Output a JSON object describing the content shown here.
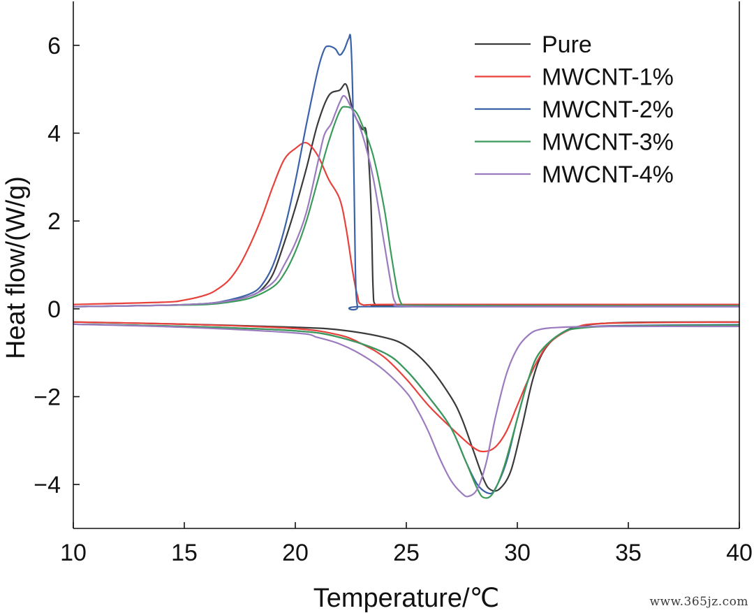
{
  "chart_data": {
    "type": "line",
    "xlabel": "Temperature/℃",
    "ylabel": "Heat flow/(W/g)",
    "xlim": [
      10,
      40
    ],
    "ylim": [
      -5,
      7
    ],
    "xticks": [
      10,
      15,
      20,
      25,
      30,
      35,
      40
    ],
    "yticks": [
      -4,
      -2,
      0,
      2,
      4,
      6
    ],
    "ytick_labels": [
      "−4",
      "−2",
      "0",
      "2",
      "4",
      "6"
    ],
    "grid": false,
    "legend_position": "top-right",
    "series": [
      {
        "name": "Pure",
        "color": "#3a3a3a",
        "curves": [
          [
            [
              10,
              0.05
            ],
            [
              14,
              0.08
            ],
            [
              16,
              0.12
            ],
            [
              17,
              0.18
            ],
            [
              18,
              0.3
            ],
            [
              18.5,
              0.45
            ],
            [
              19,
              0.8
            ],
            [
              19.5,
              1.5
            ],
            [
              20,
              2.3
            ],
            [
              20.5,
              3.2
            ],
            [
              21,
              4.2
            ],
            [
              21.5,
              4.85
            ],
            [
              22,
              4.98
            ],
            [
              22.3,
              5.1
            ],
            [
              22.6,
              4.5
            ],
            [
              23,
              4.1
            ],
            [
              23.2,
              4.0
            ],
            [
              23.4,
              2.5
            ],
            [
              23.5,
              0.5
            ],
            [
              23.6,
              0.1
            ],
            [
              24,
              0.08
            ],
            [
              30,
              0.07
            ],
            [
              40,
              0.07
            ]
          ],
          [
            [
              10,
              -0.3
            ],
            [
              15,
              -0.35
            ],
            [
              20,
              -0.42
            ],
            [
              22,
              -0.48
            ],
            [
              24,
              -0.65
            ],
            [
              25,
              -0.85
            ],
            [
              26,
              -1.3
            ],
            [
              27,
              -2.0
            ],
            [
              27.5,
              -2.5
            ],
            [
              28,
              -3.2
            ],
            [
              28.5,
              -3.9
            ],
            [
              28.8,
              -4.12
            ],
            [
              29.2,
              -4.1
            ],
            [
              29.7,
              -3.7
            ],
            [
              30.2,
              -2.7
            ],
            [
              30.7,
              -1.6
            ],
            [
              31.2,
              -0.95
            ],
            [
              32,
              -0.55
            ],
            [
              33,
              -0.38
            ],
            [
              35,
              -0.31
            ],
            [
              40,
              -0.3
            ]
          ]
        ]
      },
      {
        "name": "MWCNT-1%",
        "color": "#e8413c",
        "curves": [
          [
            [
              10,
              0.1
            ],
            [
              14,
              0.15
            ],
            [
              15,
              0.2
            ],
            [
              16,
              0.32
            ],
            [
              16.5,
              0.45
            ],
            [
              17,
              0.65
            ],
            [
              17.5,
              1.0
            ],
            [
              18,
              1.5
            ],
            [
              18.5,
              2.1
            ],
            [
              19,
              2.8
            ],
            [
              19.5,
              3.4
            ],
            [
              20,
              3.65
            ],
            [
              20.5,
              3.78
            ],
            [
              21,
              3.5
            ],
            [
              21.5,
              2.95
            ],
            [
              22,
              2.5
            ],
            [
              22.3,
              1.8
            ],
            [
              22.6,
              0.8
            ],
            [
              22.8,
              0.3
            ],
            [
              23,
              0.1
            ],
            [
              24,
              0.1
            ],
            [
              30,
              0.1
            ],
            [
              40,
              0.1
            ]
          ],
          [
            [
              10,
              -0.3
            ],
            [
              15,
              -0.35
            ],
            [
              20,
              -0.45
            ],
            [
              22,
              -0.6
            ],
            [
              23,
              -0.8
            ],
            [
              24,
              -1.1
            ],
            [
              25,
              -1.6
            ],
            [
              26,
              -2.2
            ],
            [
              27,
              -2.7
            ],
            [
              28,
              -3.15
            ],
            [
              28.5,
              -3.25
            ],
            [
              29,
              -3.15
            ],
            [
              29.5,
              -2.8
            ],
            [
              30,
              -2.2
            ],
            [
              30.5,
              -1.6
            ],
            [
              31,
              -1.1
            ],
            [
              31.5,
              -0.75
            ],
            [
              32.5,
              -0.45
            ],
            [
              34,
              -0.33
            ],
            [
              40,
              -0.3
            ]
          ]
        ]
      },
      {
        "name": "MWCNT-2%",
        "color": "#3b62a8",
        "curves": [
          [
            [
              10,
              0.05
            ],
            [
              14,
              0.08
            ],
            [
              16,
              0.12
            ],
            [
              17,
              0.2
            ],
            [
              18,
              0.35
            ],
            [
              18.5,
              0.55
            ],
            [
              19,
              1.0
            ],
            [
              19.5,
              1.8
            ],
            [
              20,
              2.9
            ],
            [
              20.5,
              4.2
            ],
            [
              21,
              5.4
            ],
            [
              21.3,
              5.9
            ],
            [
              21.5,
              5.98
            ],
            [
              21.8,
              5.92
            ],
            [
              22,
              5.78
            ],
            [
              22.2,
              5.9
            ],
            [
              22.4,
              6.15
            ],
            [
              22.5,
              6.1
            ],
            [
              22.6,
              4.5
            ],
            [
              22.7,
              1.0
            ],
            [
              22.8,
              0.05
            ],
            [
              23,
              0.05
            ],
            [
              30,
              0.05
            ],
            [
              40,
              0.05
            ]
          ],
          [
            [
              10,
              -0.35
            ],
            [
              15,
              -0.4
            ],
            [
              20,
              -0.5
            ],
            [
              22,
              -0.65
            ],
            [
              24,
              -1.0
            ],
            [
              25,
              -1.4
            ],
            [
              26,
              -2.0
            ],
            [
              27,
              -2.7
            ],
            [
              27.7,
              -3.5
            ],
            [
              28.2,
              -4.0
            ],
            [
              28.7,
              -4.2
            ],
            [
              29,
              -4.1
            ],
            [
              29.5,
              -3.5
            ],
            [
              30,
              -2.5
            ],
            [
              30.5,
              -1.6
            ],
            [
              31,
              -1.0
            ],
            [
              32,
              -0.55
            ],
            [
              33,
              -0.42
            ],
            [
              35,
              -0.38
            ],
            [
              40,
              -0.36
            ]
          ]
        ]
      },
      {
        "name": "MWCNT-3%",
        "color": "#3b9a5a",
        "curves": [
          [
            [
              10,
              0.05
            ],
            [
              14,
              0.08
            ],
            [
              16,
              0.1
            ],
            [
              17,
              0.15
            ],
            [
              18,
              0.25
            ],
            [
              19,
              0.5
            ],
            [
              19.5,
              0.8
            ],
            [
              20,
              1.3
            ],
            [
              20.5,
              2.0
            ],
            [
              21,
              2.9
            ],
            [
              21.5,
              3.8
            ],
            [
              22,
              4.5
            ],
            [
              22.3,
              4.6
            ],
            [
              22.7,
              4.5
            ],
            [
              23,
              4.2
            ],
            [
              23.5,
              3.5
            ],
            [
              24,
              2.3
            ],
            [
              24.3,
              1.3
            ],
            [
              24.6,
              0.4
            ],
            [
              24.8,
              0.1
            ],
            [
              25,
              0.08
            ],
            [
              30,
              0.07
            ],
            [
              40,
              0.07
            ]
          ],
          [
            [
              10,
              -0.35
            ],
            [
              15,
              -0.4
            ],
            [
              20,
              -0.5
            ],
            [
              22,
              -0.65
            ],
            [
              24,
              -1.0
            ],
            [
              25,
              -1.4
            ],
            [
              26,
              -2.0
            ],
            [
              27,
              -2.7
            ],
            [
              27.7,
              -3.5
            ],
            [
              28.2,
              -4.1
            ],
            [
              28.5,
              -4.3
            ],
            [
              28.9,
              -4.2
            ],
            [
              29.4,
              -3.6
            ],
            [
              30,
              -2.5
            ],
            [
              30.5,
              -1.6
            ],
            [
              31,
              -1.0
            ],
            [
              32,
              -0.55
            ],
            [
              33,
              -0.43
            ],
            [
              35,
              -0.39
            ],
            [
              40,
              -0.37
            ]
          ]
        ]
      },
      {
        "name": "MWCNT-4%",
        "color": "#9b7bbf",
        "curves": [
          [
            [
              10,
              0.05
            ],
            [
              14,
              0.08
            ],
            [
              16,
              0.12
            ],
            [
              17,
              0.18
            ],
            [
              18,
              0.3
            ],
            [
              19,
              0.6
            ],
            [
              19.5,
              1.0
            ],
            [
              20,
              1.5
            ],
            [
              20.5,
              2.2
            ],
            [
              21,
              3.3
            ],
            [
              21.3,
              3.95
            ],
            [
              21.6,
              4.2
            ],
            [
              21.8,
              4.45
            ],
            [
              22,
              4.7
            ],
            [
              22.2,
              4.85
            ],
            [
              22.5,
              4.6
            ],
            [
              23,
              4.0
            ],
            [
              23.5,
              3.0
            ],
            [
              24,
              1.5
            ],
            [
              24.3,
              0.6
            ],
            [
              24.5,
              0.15
            ],
            [
              25,
              0.06
            ],
            [
              30,
              0.05
            ],
            [
              40,
              0.05
            ]
          ],
          [
            [
              10,
              -0.35
            ],
            [
              15,
              -0.42
            ],
            [
              20,
              -0.55
            ],
            [
              21,
              -0.65
            ],
            [
              22,
              -0.8
            ],
            [
              23,
              -1.05
            ],
            [
              24,
              -1.4
            ],
            [
              25,
              -1.9
            ],
            [
              25.5,
              -2.3
            ],
            [
              26,
              -2.8
            ],
            [
              26.5,
              -3.4
            ],
            [
              27,
              -3.9
            ],
            [
              27.5,
              -4.2
            ],
            [
              27.8,
              -4.27
            ],
            [
              28.2,
              -4.1
            ],
            [
              28.6,
              -3.5
            ],
            [
              29,
              -2.5
            ],
            [
              29.5,
              -1.5
            ],
            [
              30,
              -0.9
            ],
            [
              30.5,
              -0.6
            ],
            [
              31,
              -0.47
            ],
            [
              32,
              -0.42
            ],
            [
              34,
              -0.4
            ],
            [
              40,
              -0.4
            ]
          ]
        ]
      }
    ]
  },
  "watermark": "www.365jz.com"
}
